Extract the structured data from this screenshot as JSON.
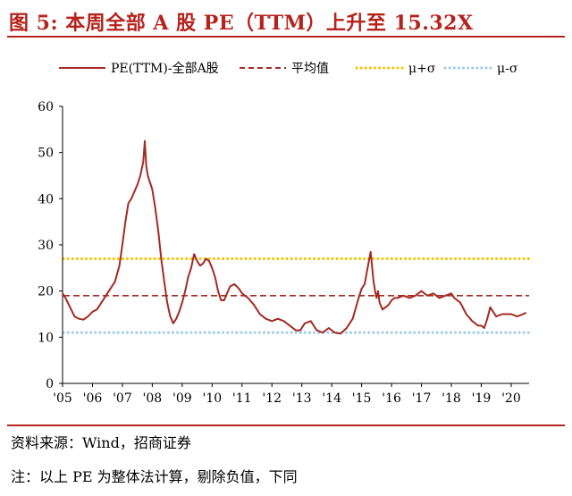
{
  "header": {
    "title": "图 5:  本周全部 A 股 PE（TTM）上升至 15.32X"
  },
  "footer": {
    "source": "资料来源：Wind，招商证券",
    "note": "注：以上 PE 为整体法计算，剔除负值，下同"
  },
  "chart_data": {
    "type": "line",
    "title": "",
    "xlabel": "",
    "ylabel": "",
    "ylim": [
      0,
      60
    ],
    "yticks": [
      0,
      10,
      20,
      30,
      40,
      50,
      60
    ],
    "xlim": [
      2005.0,
      2020.6
    ],
    "xticks": [
      {
        "value": 2005,
        "label": "'05"
      },
      {
        "value": 2006,
        "label": "'06"
      },
      {
        "value": 2007,
        "label": "'07"
      },
      {
        "value": 2008,
        "label": "'08"
      },
      {
        "value": 2009,
        "label": "'09"
      },
      {
        "value": 2010,
        "label": "'10"
      },
      {
        "value": 2011,
        "label": "'11"
      },
      {
        "value": 2012,
        "label": "'12"
      },
      {
        "value": 2013,
        "label": "'13"
      },
      {
        "value": 2014,
        "label": "'14"
      },
      {
        "value": 2015,
        "label": "'15"
      },
      {
        "value": 2016,
        "label": "'16"
      },
      {
        "value": 2017,
        "label": "'17"
      },
      {
        "value": 2018,
        "label": "'18"
      },
      {
        "value": 2019,
        "label": "'19"
      },
      {
        "value": 2020,
        "label": "'20"
      }
    ],
    "grid": false,
    "legend_position": "top",
    "series": [
      {
        "name": "PE(TTM)-全部A股",
        "color": "#a52a22",
        "style": "solid",
        "x": [
          2005.0,
          2005.1,
          2005.25,
          2005.4,
          2005.55,
          2005.7,
          2005.85,
          2006.0,
          2006.15,
          2006.3,
          2006.45,
          2006.6,
          2006.75,
          2006.9,
          2007.0,
          2007.1,
          2007.2,
          2007.3,
          2007.4,
          2007.5,
          2007.6,
          2007.7,
          2007.75,
          2007.8,
          2007.85,
          2007.9,
          2008.0,
          2008.1,
          2008.2,
          2008.3,
          2008.4,
          2008.5,
          2008.6,
          2008.7,
          2008.8,
          2008.9,
          2009.0,
          2009.1,
          2009.2,
          2009.3,
          2009.4,
          2009.5,
          2009.6,
          2009.7,
          2009.8,
          2009.9,
          2010.0,
          2010.1,
          2010.2,
          2010.3,
          2010.4,
          2010.5,
          2010.6,
          2010.75,
          2010.9,
          2011.0,
          2011.2,
          2011.4,
          2011.6,
          2011.8,
          2012.0,
          2012.2,
          2012.4,
          2012.6,
          2012.8,
          2012.95,
          2013.1,
          2013.3,
          2013.5,
          2013.7,
          2013.9,
          2014.1,
          2014.3,
          2014.5,
          2014.7,
          2014.9,
          2015.0,
          2015.1,
          2015.2,
          2015.3,
          2015.4,
          2015.45,
          2015.5,
          2015.55,
          2015.6,
          2015.7,
          2015.8,
          2015.9,
          2016.0,
          2016.1,
          2016.2,
          2016.4,
          2016.6,
          2016.8,
          2017.0,
          2017.2,
          2017.4,
          2017.6,
          2017.8,
          2018.0,
          2018.1,
          2018.3,
          2018.5,
          2018.7,
          2018.9,
          2019.0,
          2019.1,
          2019.2,
          2019.3,
          2019.5,
          2019.7,
          2019.9,
          2020.0,
          2020.2,
          2020.4,
          2020.5
        ],
        "values": [
          19.5,
          18.5,
          16.5,
          14.5,
          14.0,
          13.8,
          14.5,
          15.5,
          16.0,
          17.5,
          19.0,
          20.5,
          22.0,
          25.5,
          30.0,
          35.0,
          39.0,
          40.0,
          41.5,
          43.0,
          45.0,
          48.0,
          52.5,
          47.0,
          45.0,
          44.0,
          42.0,
          38.0,
          33.0,
          27.0,
          22.0,
          17.5,
          14.5,
          13.0,
          14.0,
          15.5,
          17.5,
          20.0,
          23.0,
          25.0,
          28.0,
          26.5,
          25.5,
          26.0,
          27.0,
          26.5,
          25.0,
          23.0,
          20.0,
          18.0,
          18.0,
          19.5,
          21.0,
          21.5,
          20.5,
          19.5,
          18.5,
          17.0,
          15.0,
          14.0,
          13.5,
          14.0,
          13.5,
          12.5,
          11.5,
          11.5,
          13.0,
          13.5,
          11.5,
          11.0,
          12.0,
          11.0,
          10.8,
          12.0,
          14.0,
          18.5,
          20.5,
          21.5,
          25.0,
          28.5,
          22.0,
          20.0,
          18.5,
          20.0,
          17.5,
          16.0,
          16.5,
          17.0,
          18.0,
          18.5,
          18.5,
          19.0,
          18.5,
          19.0,
          20.0,
          19.0,
          19.5,
          18.5,
          19.0,
          19.5,
          18.5,
          17.5,
          15.0,
          13.5,
          12.5,
          12.5,
          12.0,
          14.0,
          16.5,
          14.5,
          15.0,
          15.0,
          15.0,
          14.5,
          15.0,
          15.3
        ]
      },
      {
        "name": "平均值",
        "color": "#a52a22",
        "style": "dashed",
        "value": 19.0
      },
      {
        "name": "μ+σ",
        "color": "#f2c300",
        "style": "dotted",
        "value": 27.0
      },
      {
        "name": "μ-σ",
        "color": "#9ecbea",
        "style": "dotted",
        "value": 11.0
      }
    ]
  }
}
